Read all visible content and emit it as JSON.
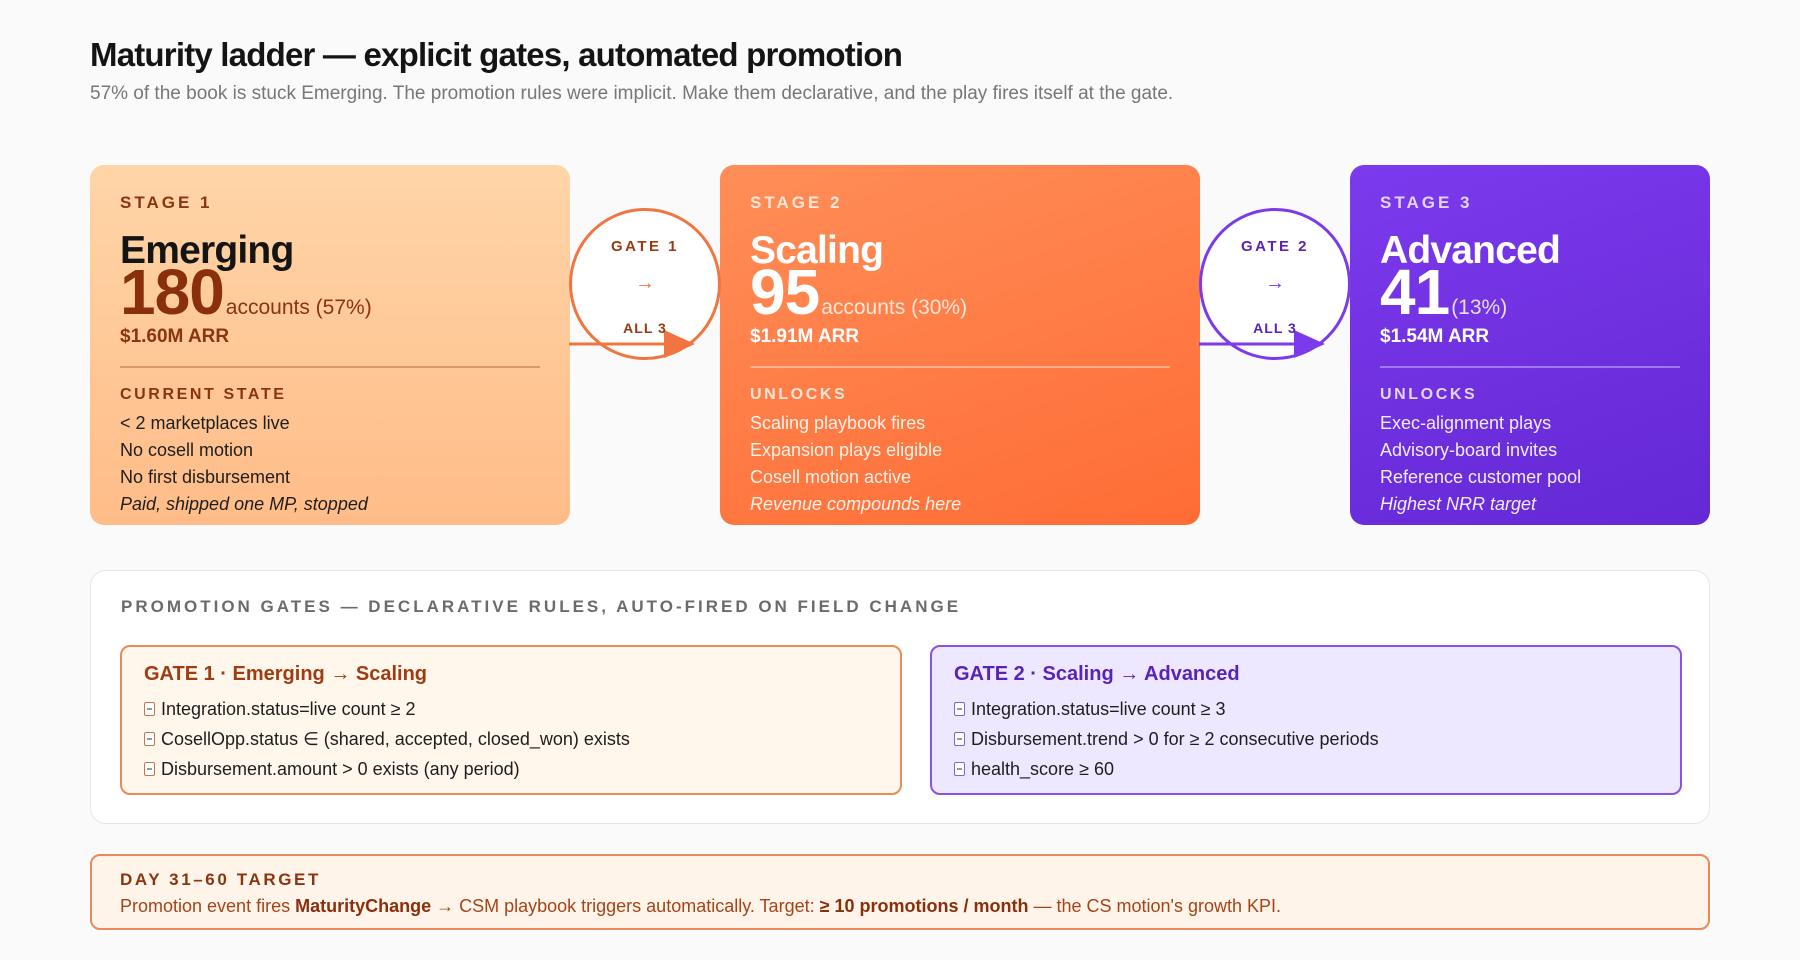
{
  "header": {
    "title": "Maturity ladder — explicit gates, automated promotion",
    "subtitle": "57% of the book is stuck Emerging. The promotion rules were implicit. Make them declarative, and the play fires itself at the gate."
  },
  "stages": [
    {
      "label": "STAGE 1",
      "name": "Emerging",
      "count": "180",
      "count_label": "accounts (57%)",
      "arr": "$1.60M ARR",
      "section_label": "CURRENT STATE",
      "items": [
        "< 2 marketplaces live",
        "No cosell motion",
        "No first disbursement"
      ],
      "note": "Paid, shipped one MP, stopped"
    },
    {
      "label": "STAGE 2",
      "name": "Scaling",
      "count": "95",
      "count_label": "accounts (30%)",
      "arr": "$1.91M ARR",
      "section_label": "UNLOCKS",
      "items": [
        "Scaling playbook fires",
        "Expansion plays eligible",
        "Cosell motion active"
      ],
      "note": "Revenue compounds here"
    },
    {
      "label": "STAGE 3",
      "name": "Advanced",
      "count": "41",
      "count_label": "(13%)",
      "arr": "$1.54M ARR",
      "section_label": "UNLOCKS",
      "items": [
        "Exec-alignment plays",
        "Advisory-board invites",
        "Reference customer pool"
      ],
      "note": "Highest NRR target"
    }
  ],
  "connectors": [
    {
      "name": "GATE 1",
      "arrow": "→",
      "rule": "ALL 3"
    },
    {
      "name": "GATE 2",
      "arrow": "→",
      "rule": "ALL 3"
    }
  ],
  "gates_panel": {
    "heading": "PROMOTION GATES — DECLARATIVE RULES, AUTO-FIRED ON FIELD CHANGE",
    "gates": [
      {
        "title": "GATE 1 · Emerging → Scaling",
        "rules": [
          "Integration.status=live count ≥ 2",
          "CosellOpp.status ∈ (shared, accepted, closed_won) exists",
          "Disbursement.amount > 0 exists (any period)"
        ]
      },
      {
        "title": "GATE 2 · Scaling → Advanced",
        "rules": [
          "Integration.status=live count ≥ 3",
          "Disbursement.trend > 0 for ≥ 2 consecutive periods",
          "health_score ≥ 60"
        ]
      }
    ]
  },
  "target": {
    "heading": "DAY 31–60 TARGET",
    "text_prefix": "Promotion event fires ",
    "event_name": "MaturityChange",
    "text_middle": " → CSM playbook triggers automatically. Target: ",
    "target_value": "≥ 10 promotions / month",
    "text_suffix": " — the CS motion's growth KPI."
  },
  "colors": {
    "stage1": "#ffc898",
    "stage2": "#ff7a42",
    "stage3": "#7030e0",
    "accent_orange": "#ea8a5a",
    "accent_purple": "#7c3aed"
  },
  "icons": {
    "rule_bullet": "check-icon",
    "connector": "arrow-right-icon"
  }
}
